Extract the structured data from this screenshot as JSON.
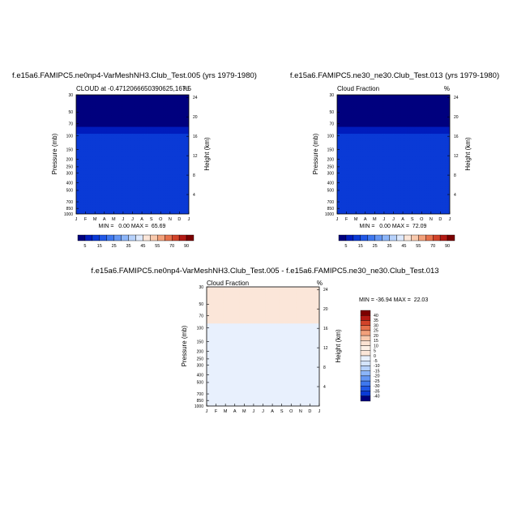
{
  "panels": [
    {
      "title": "f.e15a6.FAMIPC5.ne0np4-VarMeshNH3.Club_Test.005 (yrs 1979-1980)",
      "left_label": "CLOUD at -0.4712066650390625,167.5",
      "right_label": "%",
      "ylabel": "Pressure (mb)",
      "ylabel_right": "Height (km)",
      "stats": "MIN =   0.00 MAX =  65.69",
      "kind": "model1"
    },
    {
      "title": "f.e15a6.FAMIPC5.ne30_ne30.Club_Test.013 (yrs 1979-1980)",
      "left_label": "Cloud Fraction",
      "right_label": "%",
      "ylabel": "Pressure (mb)",
      "ylabel_right": "Height (km)",
      "stats": "MIN =   0.00 MAX =  72.09",
      "kind": "model2"
    },
    {
      "title": "f.e15a6.FAMIPC5.ne0np4-VarMeshNH3.Club_Test.005 - f.e15a6.FAMIPC5.ne30_ne30.Club_Test.013",
      "left_label": "Cloud Fraction",
      "right_label": "%",
      "ylabel": "Pressure (mb)",
      "ylabel_right": "Height (km)",
      "stats": "MIN = -36.94 MAX =  22.03",
      "kind": "diff"
    }
  ],
  "chart_data": [
    {
      "type": "heatmap",
      "title": "f.e15a6.FAMIPC5.ne0np4-VarMeshNH3.Club_Test.005 (yrs 1979-1980)",
      "subtitle": "CLOUD at -0.4712066650390625,167.5",
      "units": "%",
      "xlabel": "",
      "ylabel": "Pressure (mb)",
      "ylabel_right": "Height (km)",
      "x_ticks": [
        "J",
        "F",
        "M",
        "A",
        "M",
        "J",
        "J",
        "A",
        "S",
        "O",
        "N",
        "D",
        "J"
      ],
      "y_ticks_pressure": [
        30,
        50,
        70,
        100,
        150,
        200,
        250,
        300,
        400,
        500,
        700,
        850,
        1000
      ],
      "y_ticks_height": [
        24,
        20,
        16,
        12,
        8,
        4
      ],
      "colorbar_levels": [
        5,
        10,
        15,
        20,
        25,
        30,
        35,
        40,
        45,
        50,
        55,
        60,
        70,
        80,
        90
      ],
      "colorbar_labels": [
        "5",
        "15",
        "25",
        "35",
        "45",
        "55",
        "70",
        "90"
      ],
      "min": 0.0,
      "max": 65.69
    },
    {
      "type": "heatmap",
      "title": "f.e15a6.FAMIPC5.ne30_ne30.Club_Test.013 (yrs 1979-1980)",
      "subtitle": "Cloud Fraction",
      "units": "%",
      "xlabel": "",
      "ylabel": "Pressure (mb)",
      "ylabel_right": "Height (km)",
      "x_ticks": [
        "J",
        "F",
        "M",
        "A",
        "M",
        "J",
        "J",
        "A",
        "S",
        "O",
        "N",
        "D",
        "J"
      ],
      "y_ticks_pressure": [
        30,
        50,
        70,
        100,
        150,
        200,
        250,
        300,
        400,
        500,
        700,
        850,
        1000
      ],
      "y_ticks_height": [
        24,
        20,
        16,
        12,
        8,
        4
      ],
      "colorbar_levels": [
        5,
        10,
        15,
        20,
        25,
        30,
        35,
        40,
        45,
        50,
        55,
        60,
        70,
        80,
        90
      ],
      "colorbar_labels": [
        "5",
        "15",
        "25",
        "35",
        "45",
        "55",
        "70",
        "90"
      ],
      "min": 0.0,
      "max": 72.09
    },
    {
      "type": "heatmap",
      "title": "f.e15a6.FAMIPC5.ne0np4-VarMeshNH3.Club_Test.005 - f.e15a6.FAMIPC5.ne30_ne30.Club_Test.013",
      "subtitle": "Cloud Fraction",
      "units": "%",
      "xlabel": "",
      "ylabel": "Pressure (mb)",
      "ylabel_right": "Height (km)",
      "x_ticks": [
        "J",
        "F",
        "M",
        "A",
        "M",
        "J",
        "J",
        "A",
        "S",
        "O",
        "N",
        "D",
        "J"
      ],
      "y_ticks_pressure": [
        30,
        50,
        70,
        100,
        150,
        200,
        250,
        300,
        400,
        500,
        700,
        850,
        1000
      ],
      "y_ticks_height": [
        24,
        20,
        16,
        12,
        8,
        4
      ],
      "colorbar_levels": [
        40,
        35,
        30,
        25,
        20,
        15,
        10,
        5,
        0,
        -5,
        -10,
        -15,
        -20,
        -25,
        -30,
        -35,
        -40
      ],
      "colorbar_labels": [
        "40",
        "35",
        "30",
        "25",
        "20",
        "15",
        "10",
        "5",
        "0",
        "-5",
        "-10",
        "-15",
        "-20",
        "-25",
        "-30",
        "-35",
        "-40"
      ],
      "min": -36.94,
      "max": 22.03
    }
  ],
  "colors": {
    "seq": [
      "#00007e",
      "#001cbd",
      "#0a3ad6",
      "#2158e6",
      "#3f78ee",
      "#6496f3",
      "#8cb5f8",
      "#b6d1fb",
      "#dde9fd",
      "#fbe6d9",
      "#f8c9ad",
      "#f2a07a",
      "#e6714c",
      "#d2432a",
      "#b31a14",
      "#7c0000"
    ],
    "div": [
      "#7c0000",
      "#b31a14",
      "#d2432a",
      "#e6714c",
      "#f2a07a",
      "#f8c9ad",
      "#fbe2d2",
      "#fdf0e6",
      "#fbe6d9",
      "#e8f0fd",
      "#d4e4fb",
      "#b6d1fb",
      "#8cb5f8",
      "#6496f3",
      "#3f78ee",
      "#2158e6",
      "#0a3ad6",
      "#00007e"
    ]
  }
}
